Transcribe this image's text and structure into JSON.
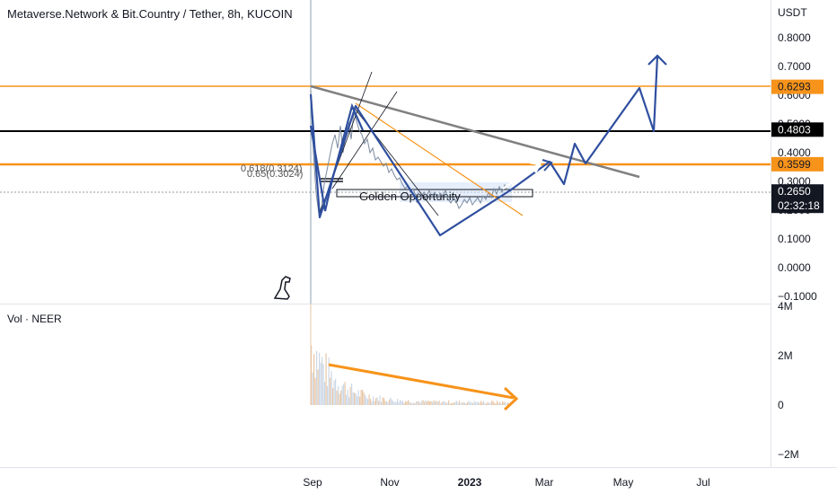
{
  "chart_data": [
    {
      "type": "line",
      "title": "Metaverse.Network & Bit.Country / Tether, 8h, KUCOIN",
      "currency": "USDT",
      "y_ticks": [
        "0.8000",
        "0.7000",
        "0.6000",
        "0.5000",
        "0.4000",
        "0.3000",
        "0.2000",
        "0.1000",
        "0.0000",
        "−0.1000"
      ],
      "y_tick_values": [
        0.8,
        0.7,
        0.6,
        0.5,
        0.4,
        0.3,
        0.2,
        0.1,
        0.0,
        -0.1
      ],
      "ylim": [
        -0.1,
        0.85
      ],
      "x_ticks": [
        {
          "label": "Sep",
          "bold": false
        },
        {
          "label": "Nov",
          "bold": false
        },
        {
          "label": "2023",
          "bold": true
        },
        {
          "label": "Mar",
          "bold": false
        },
        {
          "label": "May",
          "bold": false
        },
        {
          "label": "Jul",
          "bold": false
        }
      ],
      "price_tags": [
        {
          "label": "0.6293",
          "value": 0.6293,
          "bg": "#f7931a",
          "fg": "#131722"
        },
        {
          "label": "0.4803",
          "value": 0.4803,
          "bg": "#000000",
          "fg": "#ffffff"
        },
        {
          "label": "0.3599",
          "value": 0.3599,
          "bg": "#f7931a",
          "fg": "#131722"
        },
        {
          "label": "0.2650",
          "value": 0.265,
          "bg": "#131722",
          "fg": "#ffffff"
        }
      ],
      "countdown": "02:32:18",
      "fib_labels": [
        "0.618(0.3124)",
        "0.65(0.3024)"
      ],
      "box_label": "Golden Opportunity",
      "colors": {
        "orange": "#f7931a",
        "black": "#000000",
        "projection": "#2f4f9f",
        "trend_grey": "#808080",
        "candle": "#7a8aa0"
      }
    },
    {
      "type": "bar",
      "title": "Vol · NEER",
      "y_ticks": [
        "4M",
        "2M",
        "0",
        "−2M"
      ],
      "y_tick_values": [
        4,
        2,
        0,
        -2
      ],
      "colors": {
        "volume": "#e8c7a8",
        "trend_arrow": "#f7931a"
      }
    }
  ]
}
